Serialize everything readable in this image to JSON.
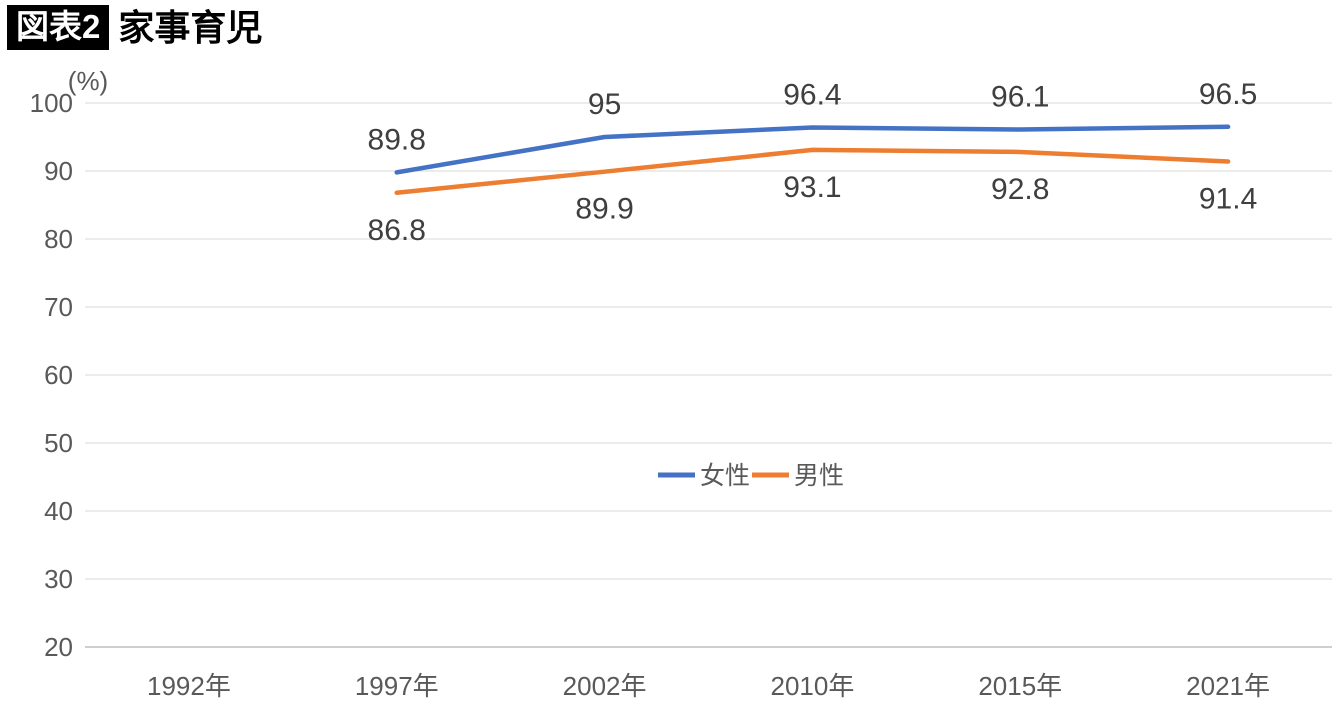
{
  "header": {
    "badge": "図表2",
    "title": "家事育児"
  },
  "chart_data": {
    "type": "line",
    "title": "家事育児",
    "figure_label": "図表2",
    "unit_label": "(%)",
    "categories": [
      "1992年",
      "1997年",
      "2002年",
      "2010年",
      "2015年",
      "2021年"
    ],
    "series": [
      {
        "id": "female",
        "name": "女性",
        "color": "#4472C4",
        "values": [
          null,
          89.8,
          95,
          96.4,
          96.1,
          96.5
        ],
        "labels": [
          "",
          "89.8",
          "95",
          "96.4",
          "96.1",
          "96.5"
        ],
        "label_side": "above"
      },
      {
        "id": "male",
        "name": "男性",
        "color": "#ED7D31",
        "values": [
          null,
          86.8,
          89.9,
          93.1,
          92.8,
          91.4
        ],
        "labels": [
          "",
          "86.8",
          "89.9",
          "93.1",
          "92.8",
          "91.4"
        ],
        "label_side": "below"
      }
    ],
    "ylim": [
      20,
      100
    ],
    "yticks": [
      20,
      30,
      40,
      50,
      60,
      70,
      80,
      90,
      100
    ],
    "xlabel": "",
    "ylabel": "(%)",
    "grid": "horizontal",
    "legend_position": "center-middle",
    "colors": {
      "grid": "#D9D9D9",
      "axis": "#BFBFBF",
      "tick_label": "#595959",
      "data_label": "#3F3F3F"
    }
  }
}
